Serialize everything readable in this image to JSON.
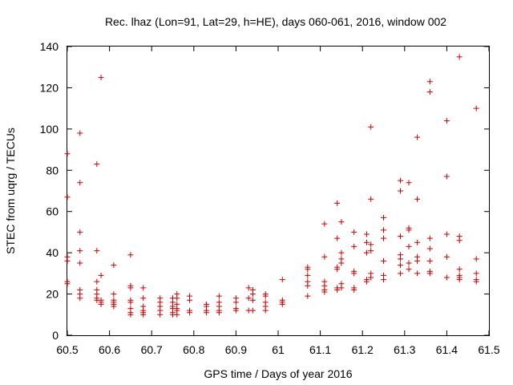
{
  "chart_data": {
    "type": "scatter",
    "title": "Rec. lhaz (Lon=91, Lat=29, h=HE), days 060-061, 2016, window 002",
    "xlabel": "GPS time / Days of year 2016",
    "ylabel": "STEC from uqrg / TECUs",
    "xlim": [
      60.5,
      61.5
    ],
    "ylim": [
      0,
      140
    ],
    "x_ticks": [
      "60.5",
      "60.6",
      "60.7",
      "60.8",
      "60.9",
      "61",
      "61.1",
      "61.2",
      "61.3",
      "61.4",
      "61.5"
    ],
    "y_ticks": [
      "0",
      "20",
      "40",
      "60",
      "80",
      "100",
      "120",
      "140"
    ],
    "grid": false,
    "marker": "+",
    "color": "#cc0000",
    "points": [
      [
        60.5,
        88
      ],
      [
        60.5,
        67
      ],
      [
        60.5,
        38
      ],
      [
        60.5,
        36
      ],
      [
        60.5,
        26
      ],
      [
        60.5,
        25
      ],
      [
        60.53,
        98
      ],
      [
        60.53,
        74
      ],
      [
        60.53,
        50
      ],
      [
        60.53,
        41
      ],
      [
        60.53,
        35
      ],
      [
        60.53,
        22
      ],
      [
        60.53,
        20
      ],
      [
        60.53,
        18
      ],
      [
        60.57,
        83
      ],
      [
        60.57,
        41
      ],
      [
        60.57,
        26
      ],
      [
        60.57,
        22
      ],
      [
        60.57,
        20
      ],
      [
        60.57,
        18
      ],
      [
        60.57,
        17
      ],
      [
        60.58,
        125
      ],
      [
        60.58,
        29
      ],
      [
        60.58,
        17
      ],
      [
        60.58,
        16
      ],
      [
        60.58,
        15
      ],
      [
        60.61,
        34
      ],
      [
        60.61,
        20
      ],
      [
        60.61,
        17
      ],
      [
        60.61,
        16
      ],
      [
        60.61,
        15
      ],
      [
        60.61,
        14
      ],
      [
        60.65,
        39
      ],
      [
        60.65,
        24
      ],
      [
        60.65,
        23
      ],
      [
        60.65,
        17
      ],
      [
        60.65,
        16
      ],
      [
        60.65,
        13
      ],
      [
        60.65,
        11
      ],
      [
        60.65,
        10
      ],
      [
        60.68,
        23
      ],
      [
        60.68,
        18
      ],
      [
        60.68,
        14
      ],
      [
        60.68,
        12
      ],
      [
        60.68,
        11
      ],
      [
        60.68,
        10
      ],
      [
        60.72,
        18
      ],
      [
        60.72,
        16
      ],
      [
        60.72,
        14
      ],
      [
        60.72,
        12
      ],
      [
        60.72,
        10
      ],
      [
        60.75,
        18
      ],
      [
        60.75,
        16
      ],
      [
        60.75,
        14
      ],
      [
        60.75,
        13
      ],
      [
        60.75,
        11
      ],
      [
        60.75,
        10
      ],
      [
        60.76,
        20
      ],
      [
        60.76,
        18
      ],
      [
        60.76,
        15
      ],
      [
        60.76,
        13
      ],
      [
        60.76,
        12
      ],
      [
        60.76,
        10
      ],
      [
        60.79,
        19
      ],
      [
        60.79,
        17
      ],
      [
        60.79,
        12
      ],
      [
        60.79,
        11
      ],
      [
        60.83,
        15
      ],
      [
        60.83,
        14
      ],
      [
        60.83,
        12
      ],
      [
        60.83,
        11
      ],
      [
        60.86,
        19
      ],
      [
        60.86,
        16
      ],
      [
        60.86,
        14
      ],
      [
        60.86,
        12
      ],
      [
        60.86,
        11
      ],
      [
        60.9,
        18
      ],
      [
        60.9,
        16
      ],
      [
        60.9,
        13
      ],
      [
        60.9,
        12
      ],
      [
        60.93,
        23
      ],
      [
        60.93,
        18
      ],
      [
        60.93,
        12
      ],
      [
        60.94,
        22
      ],
      [
        60.94,
        20
      ],
      [
        60.94,
        17
      ],
      [
        60.94,
        12
      ],
      [
        60.97,
        20
      ],
      [
        60.97,
        19
      ],
      [
        60.97,
        16
      ],
      [
        60.97,
        14
      ],
      [
        60.97,
        12
      ],
      [
        61.01,
        27
      ],
      [
        61.01,
        17
      ],
      [
        61.01,
        16
      ],
      [
        61.01,
        15
      ],
      [
        61.07,
        33
      ],
      [
        61.07,
        32
      ],
      [
        61.07,
        29
      ],
      [
        61.07,
        26
      ],
      [
        61.07,
        24
      ],
      [
        61.07,
        19
      ],
      [
        61.11,
        54
      ],
      [
        61.11,
        38
      ],
      [
        61.11,
        26
      ],
      [
        61.11,
        24
      ],
      [
        61.11,
        22
      ],
      [
        61.11,
        21
      ],
      [
        61.14,
        64
      ],
      [
        61.14,
        47
      ],
      [
        61.14,
        33
      ],
      [
        61.14,
        32
      ],
      [
        61.14,
        23
      ],
      [
        61.14,
        22
      ],
      [
        61.15,
        55
      ],
      [
        61.15,
        40
      ],
      [
        61.15,
        37
      ],
      [
        61.15,
        35
      ],
      [
        61.15,
        25
      ],
      [
        61.15,
        23
      ],
      [
        61.18,
        50
      ],
      [
        61.18,
        43
      ],
      [
        61.18,
        31
      ],
      [
        61.18,
        30
      ],
      [
        61.18,
        23
      ],
      [
        61.18,
        22
      ],
      [
        61.21,
        49
      ],
      [
        61.21,
        45
      ],
      [
        61.21,
        40
      ],
      [
        61.21,
        27
      ],
      [
        61.21,
        26
      ],
      [
        61.22,
        101
      ],
      [
        61.22,
        66
      ],
      [
        61.22,
        44
      ],
      [
        61.22,
        41
      ],
      [
        61.22,
        30
      ],
      [
        61.22,
        28
      ],
      [
        61.25,
        57
      ],
      [
        61.25,
        51
      ],
      [
        61.25,
        47
      ],
      [
        61.25,
        36
      ],
      [
        61.25,
        29
      ],
      [
        61.25,
        27
      ],
      [
        61.29,
        75
      ],
      [
        61.29,
        70
      ],
      [
        61.29,
        48
      ],
      [
        61.29,
        39
      ],
      [
        61.29,
        37
      ],
      [
        61.29,
        34
      ],
      [
        61.29,
        30
      ],
      [
        61.31,
        74
      ],
      [
        61.31,
        52
      ],
      [
        61.31,
        51
      ],
      [
        61.31,
        43
      ],
      [
        61.31,
        35
      ],
      [
        61.31,
        32
      ],
      [
        61.33,
        96
      ],
      [
        61.33,
        66
      ],
      [
        61.33,
        45
      ],
      [
        61.33,
        38
      ],
      [
        61.33,
        36
      ],
      [
        61.33,
        30
      ],
      [
        61.36,
        123
      ],
      [
        61.36,
        118
      ],
      [
        61.36,
        47
      ],
      [
        61.36,
        42
      ],
      [
        61.36,
        36
      ],
      [
        61.36,
        31
      ],
      [
        61.36,
        30
      ],
      [
        61.4,
        104
      ],
      [
        61.4,
        77
      ],
      [
        61.4,
        49
      ],
      [
        61.4,
        38
      ],
      [
        61.4,
        28
      ],
      [
        61.43,
        135
      ],
      [
        61.43,
        48
      ],
      [
        61.43,
        46
      ],
      [
        61.43,
        32
      ],
      [
        61.43,
        29
      ],
      [
        61.43,
        28
      ],
      [
        61.43,
        27
      ],
      [
        61.47,
        110
      ],
      [
        61.47,
        37
      ],
      [
        61.47,
        30
      ],
      [
        61.47,
        27
      ],
      [
        61.47,
        26
      ]
    ]
  }
}
